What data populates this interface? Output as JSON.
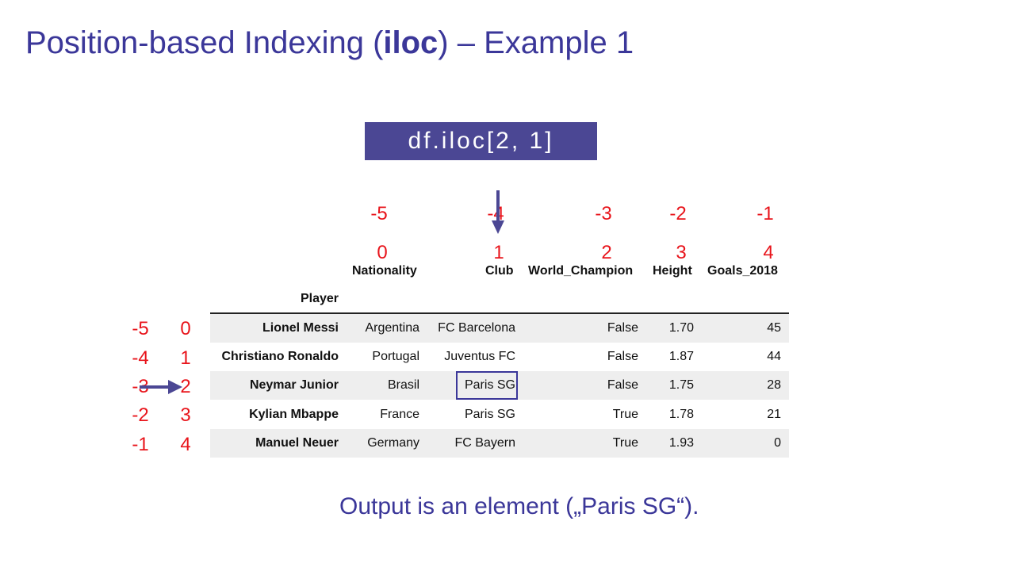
{
  "title": {
    "prefix": "Position-based Indexing (",
    "bold": "iloc",
    "suffix": ") – Example 1"
  },
  "code": "df.iloc[2, 1]",
  "column_negative_indices": [
    "-5",
    "-4",
    "-3",
    "-2",
    "-1"
  ],
  "column_positive_indices": [
    "0",
    "1",
    "2",
    "3",
    "4"
  ],
  "row_negative_indices": [
    "-5",
    "-4",
    "-3",
    "-2",
    "-1"
  ],
  "row_positive_indices": [
    "0",
    "1",
    "2",
    "3",
    "4"
  ],
  "table": {
    "index_name": "Player",
    "columns": [
      "Nationality",
      "Club",
      "World_Champion",
      "Height",
      "Goals_2018"
    ],
    "rows": [
      {
        "player": "Lionel Messi",
        "nationality": "Argentina",
        "club": "FC Barcelona",
        "world_champion": "False",
        "height": "1.70",
        "goals": "45"
      },
      {
        "player": "Christiano Ronaldo",
        "nationality": "Portugal",
        "club": "Juventus FC",
        "world_champion": "False",
        "height": "1.87",
        "goals": "44"
      },
      {
        "player": "Neymar Junior",
        "nationality": "Brasil",
        "club": "Paris SG",
        "world_champion": "False",
        "height": "1.75",
        "goals": "28"
      },
      {
        "player": "Kylian Mbappe",
        "nationality": "France",
        "club": "Paris SG",
        "world_champion": "True",
        "height": "1.78",
        "goals": "21"
      },
      {
        "player": "Manuel Neuer",
        "nationality": "Germany",
        "club": "FC Bayern",
        "world_champion": "True",
        "height": "1.93",
        "goals": "0"
      }
    ]
  },
  "output_text": "Output is an element („Paris SG“).",
  "colors": {
    "accent": "#3b3799",
    "code_bg": "#4b4794",
    "index_red": "#e8141b"
  }
}
